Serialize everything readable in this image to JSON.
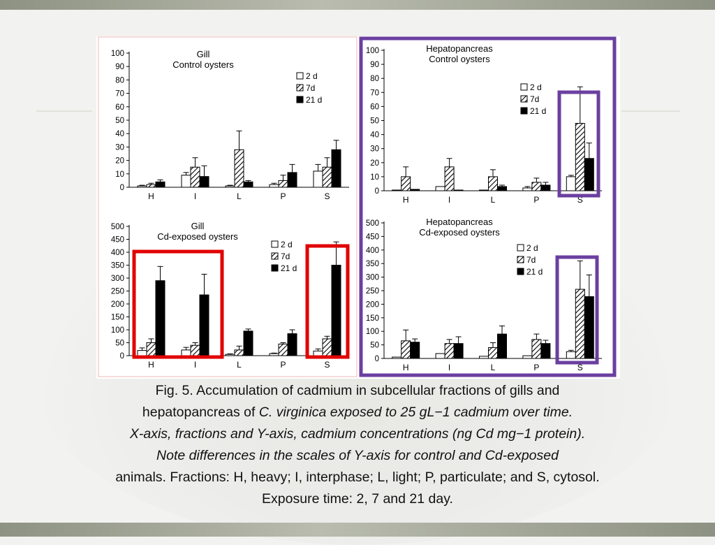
{
  "colors": {
    "purple_box": "#6b3fa0",
    "red_box": "#e10000",
    "bar_2d": "#ffffff",
    "bar_7d": "hatched",
    "bar_21d": "#000000"
  },
  "caption": {
    "line1": "Fig. 5. Accumulation of cadmium in subcellular fractions of gills and",
    "line2_normal": "hepatopancreas of ",
    "line2_italic": "C. virginica exposed to 25 gL−1 cadmium over time.",
    "line3": "X-axis, fractions and Y-axis, cadmium concentrations (ng Cd mg−1 protein).",
    "line4": "Note differences in the scales of Y-axis for control and Cd-exposed",
    "line5": "animals. Fractions: H, heavy; I, interphase; L, light; P, particulate; and S, cytosol.",
    "line6": "Exposure time: 2, 7 and 21 day."
  },
  "chart_data": [
    {
      "type": "bar",
      "title": "Gill",
      "subtitle": "Control oysters",
      "categories": [
        "H",
        "I",
        "L",
        "P",
        "S"
      ],
      "ylim": [
        0,
        100
      ],
      "yticks": [
        0,
        10,
        20,
        30,
        40,
        50,
        60,
        70,
        80,
        90,
        100
      ],
      "legend_position": "top-right",
      "series": [
        {
          "name": "2 d",
          "values": [
            1,
            9,
            1,
            2,
            12
          ],
          "errors": [
            0.5,
            2,
            0.5,
            1,
            5
          ]
        },
        {
          "name": "7d",
          "values": [
            2,
            15,
            28,
            5,
            15
          ],
          "errors": [
            1,
            7,
            14,
            4,
            7
          ]
        },
        {
          "name": "21 d",
          "values": [
            4,
            8,
            4,
            11,
            28
          ],
          "errors": [
            1.5,
            8,
            1,
            6,
            7
          ]
        }
      ]
    },
    {
      "type": "bar",
      "title": "Hepatopancreas",
      "subtitle": "Control oysters",
      "categories": [
        "H",
        "I",
        "L",
        "P",
        "S"
      ],
      "ylim": [
        0,
        100
      ],
      "yticks": [
        0,
        10,
        20,
        30,
        40,
        50,
        60,
        70,
        80,
        90,
        100
      ],
      "legend_position": "top-right",
      "series": [
        {
          "name": "2 d",
          "values": [
            0.5,
            3,
            0.5,
            2,
            10
          ],
          "errors": [
            0,
            0,
            0,
            1,
            1
          ]
        },
        {
          "name": "7d",
          "values": [
            10,
            17,
            10,
            6,
            48
          ],
          "errors": [
            7,
            6,
            5,
            3,
            26
          ]
        },
        {
          "name": "21 d",
          "values": [
            1,
            0.5,
            3,
            4,
            23
          ],
          "errors": [
            0,
            0,
            1,
            2,
            11
          ]
        }
      ]
    },
    {
      "type": "bar",
      "title": "Gill",
      "subtitle": "Cd-exposed oysters",
      "categories": [
        "H",
        "I",
        "L",
        "P",
        "S"
      ],
      "ylim": [
        0,
        500
      ],
      "yticks": [
        0,
        50,
        100,
        150,
        200,
        250,
        300,
        350,
        400,
        450,
        500
      ],
      "legend_position": "top-right",
      "series": [
        {
          "name": "2 d",
          "values": [
            20,
            22,
            5,
            8,
            18
          ],
          "errors": [
            10,
            10,
            2,
            2,
            8
          ]
        },
        {
          "name": "7d",
          "values": [
            50,
            40,
            22,
            45,
            65
          ],
          "errors": [
            15,
            10,
            15,
            5,
            10
          ]
        },
        {
          "name": "21 d",
          "values": [
            290,
            235,
            95,
            85,
            350
          ],
          "errors": [
            55,
            80,
            8,
            15,
            90
          ]
        }
      ]
    },
    {
      "type": "bar",
      "title": "Hepatopancreas",
      "subtitle": "Cd-exposed oysters",
      "categories": [
        "H",
        "I",
        "L",
        "P",
        "S"
      ],
      "ylim": [
        0,
        500
      ],
      "yticks": [
        0,
        50,
        100,
        150,
        200,
        250,
        300,
        350,
        400,
        450,
        500
      ],
      "legend_position": "top-right",
      "series": [
        {
          "name": "2 d",
          "values": [
            5,
            18,
            8,
            10,
            25
          ],
          "errors": [
            0,
            0,
            0,
            0,
            5
          ]
        },
        {
          "name": "7d",
          "values": [
            65,
            55,
            40,
            70,
            255
          ],
          "errors": [
            40,
            15,
            18,
            20,
            105
          ]
        },
        {
          "name": "21 d",
          "values": [
            60,
            55,
            90,
            55,
            228
          ],
          "errors": [
            12,
            25,
            30,
            12,
            80
          ]
        }
      ]
    }
  ]
}
